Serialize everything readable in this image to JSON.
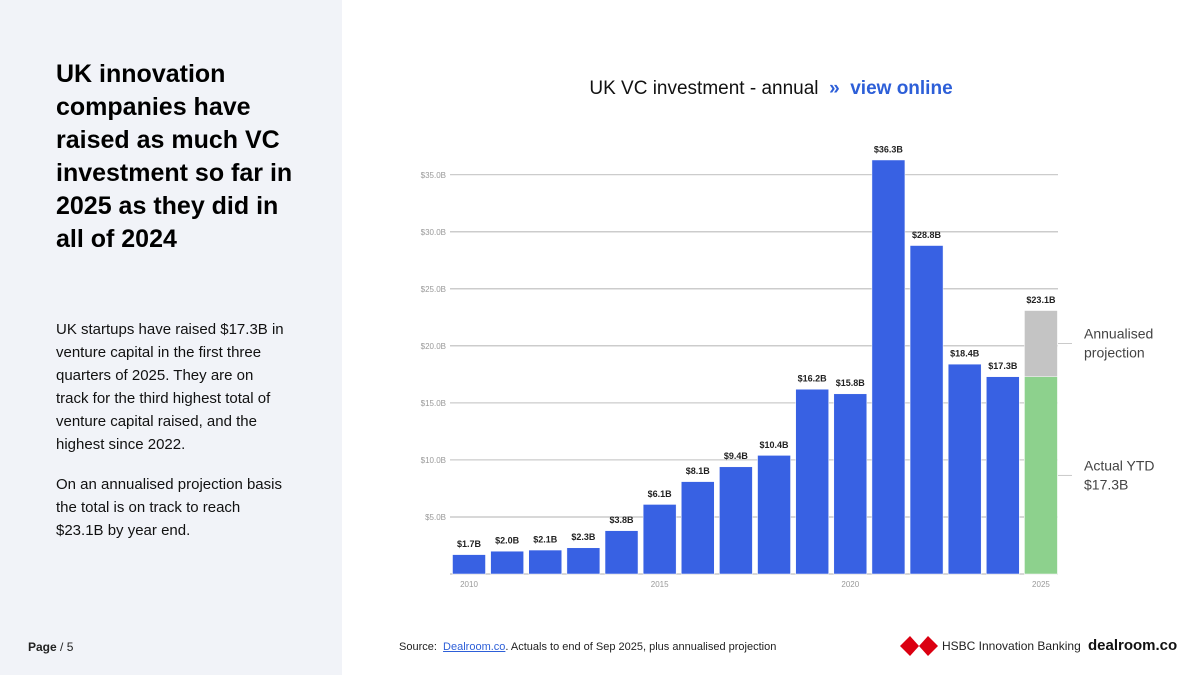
{
  "sidebar": {
    "headline": "UK innovation companies have raised as much VC investment so far in 2025 as they did in all of 2024",
    "paragraphs": [
      "UK startups have raised $17.3B in venture capital in the first three quarters of 2025. They are on track for the third highest total of venture capital raised, and the highest since 2022.",
      "On an annualised projection basis the total is on track to reach $23.1B by year end."
    ]
  },
  "footer": {
    "page_label": "Page",
    "page_number": "/ 5",
    "source_prefix": "Source:",
    "source_link": "Dealroom.co",
    "source_suffix": ". Actuals to end of Sep 2025, plus annualised projection",
    "logos": [
      "HSBC Innovation Banking",
      "dealroom.co"
    ]
  },
  "chart_data": {
    "type": "bar",
    "title": "UK VC investment - annual",
    "title_link_marker": "»",
    "title_link": "view online",
    "categories": [
      "2010",
      null,
      null,
      null,
      null,
      "2015",
      null,
      null,
      null,
      null,
      "2020",
      null,
      null,
      null,
      null,
      "2025"
    ],
    "series": [
      {
        "color": "#3861e3",
        "values": [
          1.7,
          2.0,
          2.1,
          2.3,
          3.8,
          6.1,
          8.1,
          9.4,
          10.4,
          16.2,
          15.8,
          36.3,
          28.8,
          18.4,
          17.3,
          null
        ],
        "value_labels": [
          "$1.7B",
          "$2.0B",
          "$2.1B",
          "$2.3B",
          "$3.8B",
          "$6.1B",
          "$8.1B",
          "$9.4B",
          "$10.4B",
          "$16.2B",
          "$15.8B",
          "$36.3B",
          "$28.8B",
          "$18.4B",
          "$17.3B",
          null
        ]
      },
      {
        "name": "Annualised projection",
        "color": "#c4c4c4",
        "values": [
          null,
          null,
          null,
          null,
          null,
          null,
          null,
          null,
          null,
          null,
          null,
          null,
          null,
          null,
          null,
          23.1
        ],
        "value_labels": [
          null,
          null,
          null,
          null,
          null,
          null,
          null,
          null,
          null,
          null,
          null,
          null,
          null,
          null,
          null,
          "$23.1B"
        ]
      },
      {
        "name": "Actual YTD $17.3B",
        "color": "#8dd18d",
        "values": [
          null,
          null,
          null,
          null,
          null,
          null,
          null,
          null,
          null,
          null,
          null,
          null,
          null,
          null,
          null,
          17.3
        ]
      }
    ],
    "ylim": [
      0,
      37
    ],
    "yticks": [
      {
        "value": 5,
        "label": "$5.0B"
      },
      {
        "value": 10,
        "label": "$10.0B"
      },
      {
        "value": 15,
        "label": "$15.0B"
      },
      {
        "value": 20,
        "label": "$20.0B"
      },
      {
        "value": 25,
        "label": "$25.0B"
      },
      {
        "value": 30,
        "label": "$30.0B"
      },
      {
        "value": 35,
        "label": "$35.0B"
      }
    ],
    "grid": true
  }
}
